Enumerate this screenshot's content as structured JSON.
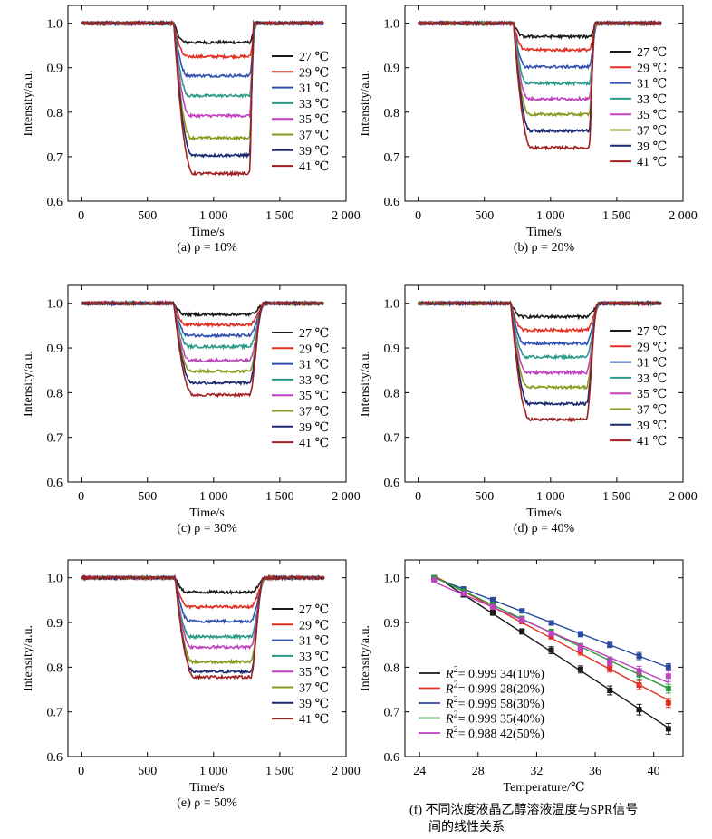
{
  "figure": {
    "temperature_unit": "℃",
    "time_axis": {
      "xlabel": "Time/s",
      "xticks": [
        "0",
        "500",
        "1 000",
        "1 500",
        "2 000"
      ],
      "xtick_values": [
        0,
        500,
        1000,
        1500,
        2000
      ],
      "xlim": [
        -100,
        2000
      ]
    },
    "intensity_axis": {
      "ylabel": "Intensity/a.u.",
      "yticks": [
        "0.6",
        "0.7",
        "0.8",
        "0.9",
        "1.0"
      ],
      "ytick_values": [
        0.6,
        0.7,
        0.8,
        0.9,
        1.0
      ],
      "ylim": [
        0.6,
        1.04
      ]
    }
  },
  "chart_data": [
    {
      "type": "line",
      "panel": "a",
      "caption": "(a) ρ = 10%",
      "xlabel": "Time/s",
      "ylabel": "Intensity/a.u.",
      "x_drop_start": 700,
      "x_drop_end": 790,
      "x_rise_start": 1270,
      "x_rise_end": 1330,
      "x_end": 1830,
      "series": [
        {
          "name": "27 ℃",
          "plateau": 0.957,
          "color": "#1a1a1a"
        },
        {
          "name": "29 ℃",
          "plateau": 0.925,
          "color": "#e03020"
        },
        {
          "name": "31 ℃",
          "plateau": 0.882,
          "color": "#3050b0"
        },
        {
          "name": "33 ℃",
          "plateau": 0.837,
          "color": "#2a9a8a"
        },
        {
          "name": "35 ℃",
          "plateau": 0.792,
          "color": "#c040c0"
        },
        {
          "name": "37 ℃",
          "plateau": 0.742,
          "color": "#8a9a20"
        },
        {
          "name": "39 ℃",
          "plateau": 0.703,
          "color": "#1a2a70"
        },
        {
          "name": "41 ℃",
          "plateau": 0.662,
          "color": "#a02020"
        }
      ]
    },
    {
      "type": "line",
      "panel": "b",
      "caption": "(b) ρ = 20%",
      "xlabel": "Time/s",
      "ylabel": "Intensity/a.u.",
      "x_drop_start": 720,
      "x_drop_end": 800,
      "x_rise_start": 1290,
      "x_rise_end": 1360,
      "x_end": 1840,
      "series": [
        {
          "name": "27 ℃",
          "plateau": 0.97,
          "color": "#1a1a1a"
        },
        {
          "name": "29 ℃",
          "plateau": 0.94,
          "color": "#e03020"
        },
        {
          "name": "31 ℃",
          "plateau": 0.902,
          "color": "#3050b0"
        },
        {
          "name": "33 ℃",
          "plateau": 0.865,
          "color": "#2a9a8a"
        },
        {
          "name": "35 ℃",
          "plateau": 0.83,
          "color": "#c040c0"
        },
        {
          "name": "37 ℃",
          "plateau": 0.795,
          "color": "#8a9a20"
        },
        {
          "name": "39 ℃",
          "plateau": 0.758,
          "color": "#1a2a70"
        },
        {
          "name": "41 ℃",
          "plateau": 0.72,
          "color": "#a02020"
        }
      ]
    },
    {
      "type": "line",
      "panel": "c",
      "caption": "(c) ρ = 30%",
      "xlabel": "Time/s",
      "ylabel": "Intensity/a.u.",
      "x_drop_start": 700,
      "x_drop_end": 790,
      "x_rise_start": 1270,
      "x_rise_end": 1400,
      "x_end": 1830,
      "series": [
        {
          "name": "27 ℃",
          "plateau": 0.975,
          "color": "#1a1a1a"
        },
        {
          "name": "29 ℃",
          "plateau": 0.952,
          "color": "#e03020"
        },
        {
          "name": "31 ℃",
          "plateau": 0.928,
          "color": "#3050b0"
        },
        {
          "name": "33 ℃",
          "plateau": 0.903,
          "color": "#2a9a8a"
        },
        {
          "name": "35 ℃",
          "plateau": 0.872,
          "color": "#c040c0"
        },
        {
          "name": "37 ℃",
          "plateau": 0.848,
          "color": "#8a9a20"
        },
        {
          "name": "39 ℃",
          "plateau": 0.822,
          "color": "#1a2a70"
        },
        {
          "name": "41 ℃",
          "plateau": 0.795,
          "color": "#a02020"
        }
      ]
    },
    {
      "type": "line",
      "panel": "d",
      "caption": "(d) ρ = 40%",
      "xlabel": "Time/s",
      "ylabel": "Intensity/a.u.",
      "x_drop_start": 700,
      "x_drop_end": 790,
      "x_rise_start": 1270,
      "x_rise_end": 1380,
      "x_end": 1840,
      "series": [
        {
          "name": "27 ℃",
          "plateau": 0.97,
          "color": "#1a1a1a"
        },
        {
          "name": "29 ℃",
          "plateau": 0.94,
          "color": "#e03020"
        },
        {
          "name": "31 ℃",
          "plateau": 0.91,
          "color": "#3050b0"
        },
        {
          "name": "33 ℃",
          "plateau": 0.88,
          "color": "#2a9a8a"
        },
        {
          "name": "35 ℃",
          "plateau": 0.845,
          "color": "#c040c0"
        },
        {
          "name": "37 ℃",
          "plateau": 0.812,
          "color": "#8a9a20"
        },
        {
          "name": "39 ℃",
          "plateau": 0.775,
          "color": "#1a2a70"
        },
        {
          "name": "41 ℃",
          "plateau": 0.74,
          "color": "#a02020"
        }
      ]
    },
    {
      "type": "line",
      "panel": "e",
      "caption": "(e) ρ = 50%",
      "xlabel": "Time/s",
      "ylabel": "Intensity/a.u.",
      "x_drop_start": 710,
      "x_drop_end": 800,
      "x_rise_start": 1280,
      "x_rise_end": 1400,
      "x_end": 1840,
      "series": [
        {
          "name": "27 ℃",
          "plateau": 0.968,
          "color": "#1a1a1a"
        },
        {
          "name": "29 ℃",
          "plateau": 0.935,
          "color": "#e03020"
        },
        {
          "name": "31 ℃",
          "plateau": 0.903,
          "color": "#3050b0"
        },
        {
          "name": "33 ℃",
          "plateau": 0.868,
          "color": "#2a9a8a"
        },
        {
          "name": "35 ℃",
          "plateau": 0.845,
          "color": "#c040c0"
        },
        {
          "name": "37 ℃",
          "plateau": 0.812,
          "color": "#8a9a20"
        },
        {
          "name": "39 ℃",
          "plateau": 0.79,
          "color": "#1a2a70"
        },
        {
          "name": "41 ℃",
          "plateau": 0.778,
          "color": "#a02020"
        }
      ]
    },
    {
      "type": "scatter",
      "panel": "f",
      "caption_line1": "(f) 不同浓度液晶乙醇溶液温度与SPR信号",
      "caption_line2": "间的线性关系",
      "xlabel": "Temperature/℃",
      "ylabel": "Intensity/a.u.",
      "xticks": [
        "24",
        "28",
        "32",
        "36",
        "40"
      ],
      "xtick_values": [
        24,
        28,
        32,
        36,
        40
      ],
      "xlim": [
        23,
        42
      ],
      "yticks": [
        "0.6",
        "0.7",
        "0.8",
        "0.9",
        "1.0"
      ],
      "ytick_values": [
        0.6,
        0.7,
        0.8,
        0.9,
        1.0
      ],
      "ylim": [
        0.6,
        1.04
      ],
      "x": [
        25,
        27,
        29,
        31,
        33,
        35,
        37,
        39,
        41
      ],
      "series": [
        {
          "r2_label": "= 0.999 34(10%)",
          "color": "#1a1a1a",
          "values": [
            1.0,
            0.962,
            0.922,
            0.88,
            0.838,
            0.795,
            0.748,
            0.705,
            0.662
          ],
          "errors": [
            0.003,
            0.005,
            0.006,
            0.006,
            0.008,
            0.008,
            0.01,
            0.012,
            0.012
          ]
        },
        {
          "r2_label": "= 0.999 28(20%)",
          "color": "#e03020",
          "values": [
            1.0,
            0.967,
            0.936,
            0.903,
            0.869,
            0.835,
            0.797,
            0.76,
            0.72
          ],
          "errors": [
            0.003,
            0.004,
            0.005,
            0.006,
            0.006,
            0.008,
            0.008,
            0.01,
            0.01
          ]
        },
        {
          "r2_label": "= 0.999 58(30%)",
          "color": "#2a4aa0",
          "values": [
            1.0,
            0.975,
            0.951,
            0.926,
            0.899,
            0.874,
            0.85,
            0.825,
            0.8
          ],
          "errors": [
            0.002,
            0.003,
            0.004,
            0.004,
            0.005,
            0.006,
            0.006,
            0.008,
            0.008
          ]
        },
        {
          "r2_label": "= 0.999 35(40%)",
          "color": "#2a9a3a",
          "values": [
            1.0,
            0.97,
            0.94,
            0.909,
            0.879,
            0.846,
            0.815,
            0.783,
            0.752
          ],
          "errors": [
            0.003,
            0.004,
            0.005,
            0.005,
            0.006,
            0.007,
            0.008,
            0.01,
            0.01
          ]
        },
        {
          "r2_label": "= 0.988 42(50%)",
          "color": "#c040c0",
          "values": [
            0.995,
            0.965,
            0.935,
            0.906,
            0.875,
            0.843,
            0.812,
            0.792,
            0.78
          ],
          "errors": [
            0.003,
            0.004,
            0.005,
            0.006,
            0.006,
            0.008,
            0.008,
            0.01,
            0.012
          ]
        }
      ]
    }
  ]
}
